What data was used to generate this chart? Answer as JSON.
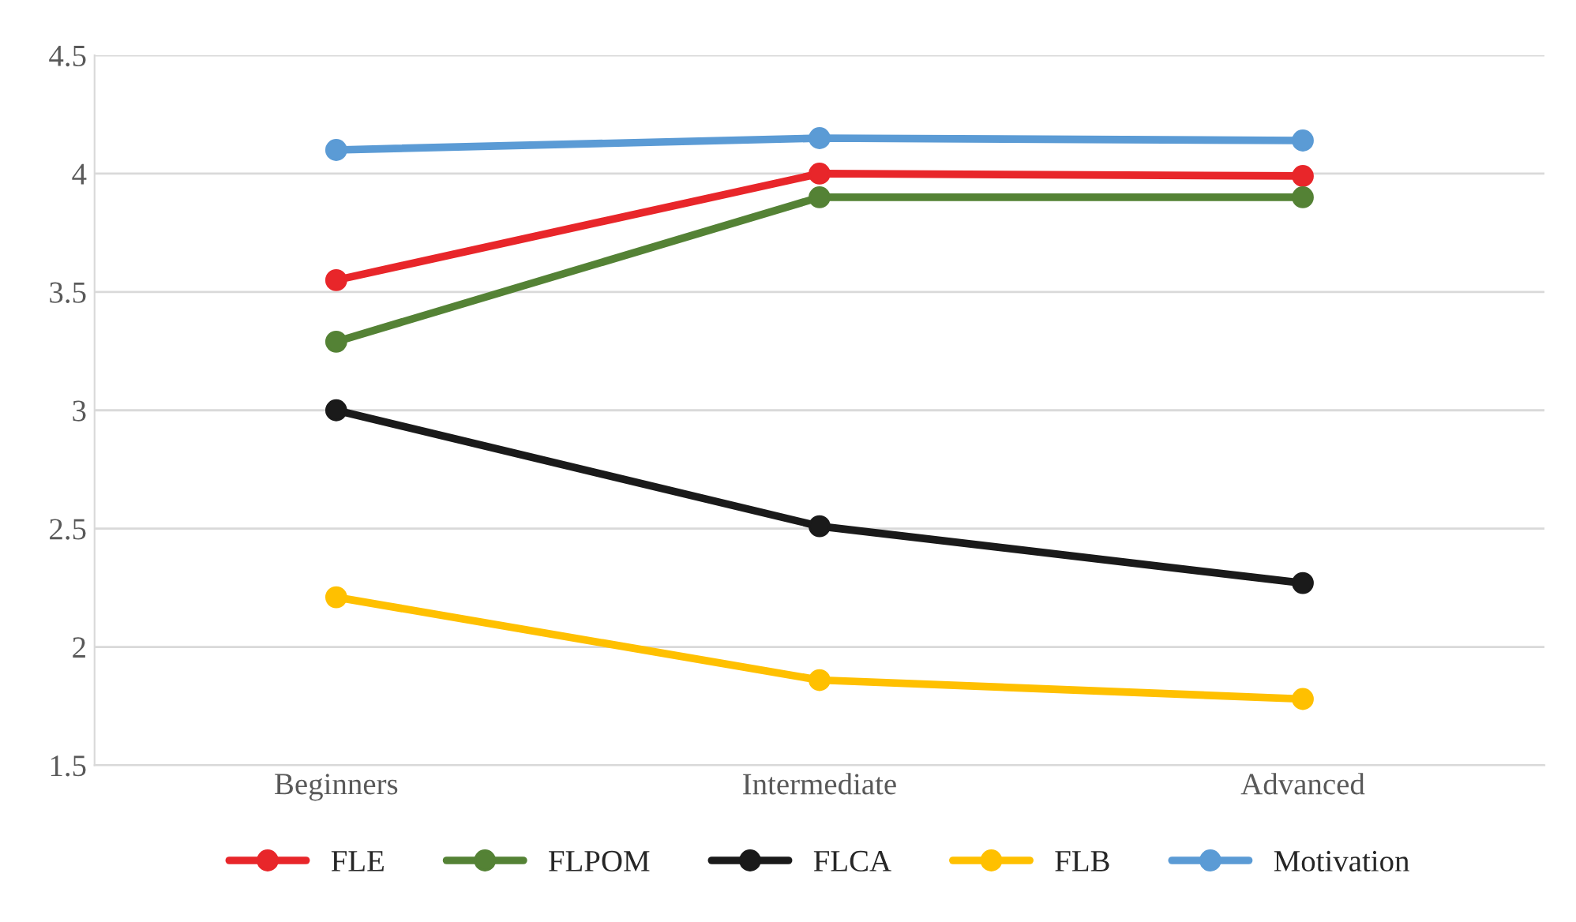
{
  "chart_data": {
    "type": "line",
    "categories": [
      "Beginners",
      "Intermediate",
      "Advanced"
    ],
    "series": [
      {
        "name": "FLE",
        "color": "#e8262a",
        "values": [
          3.55,
          4.0,
          3.99
        ]
      },
      {
        "name": "FLPOM",
        "color": "#548235",
        "values": [
          3.29,
          3.9,
          3.9
        ]
      },
      {
        "name": "FLCA",
        "color": "#1a1a1a",
        "values": [
          3.0,
          2.51,
          2.27
        ]
      },
      {
        "name": "FLB",
        "color": "#ffc000",
        "values": [
          2.21,
          1.86,
          1.78
        ]
      },
      {
        "name": "Motivation",
        "color": "#5b9bd5",
        "values": [
          4.1,
          4.15,
          4.14
        ]
      }
    ],
    "ylim": [
      1.5,
      4.5
    ],
    "yticks": [
      1.5,
      2,
      2.5,
      3,
      3.5,
      4,
      4.5
    ],
    "grid": "y",
    "legend": "bottom",
    "marker": "circle",
    "line_style": "solid"
  }
}
